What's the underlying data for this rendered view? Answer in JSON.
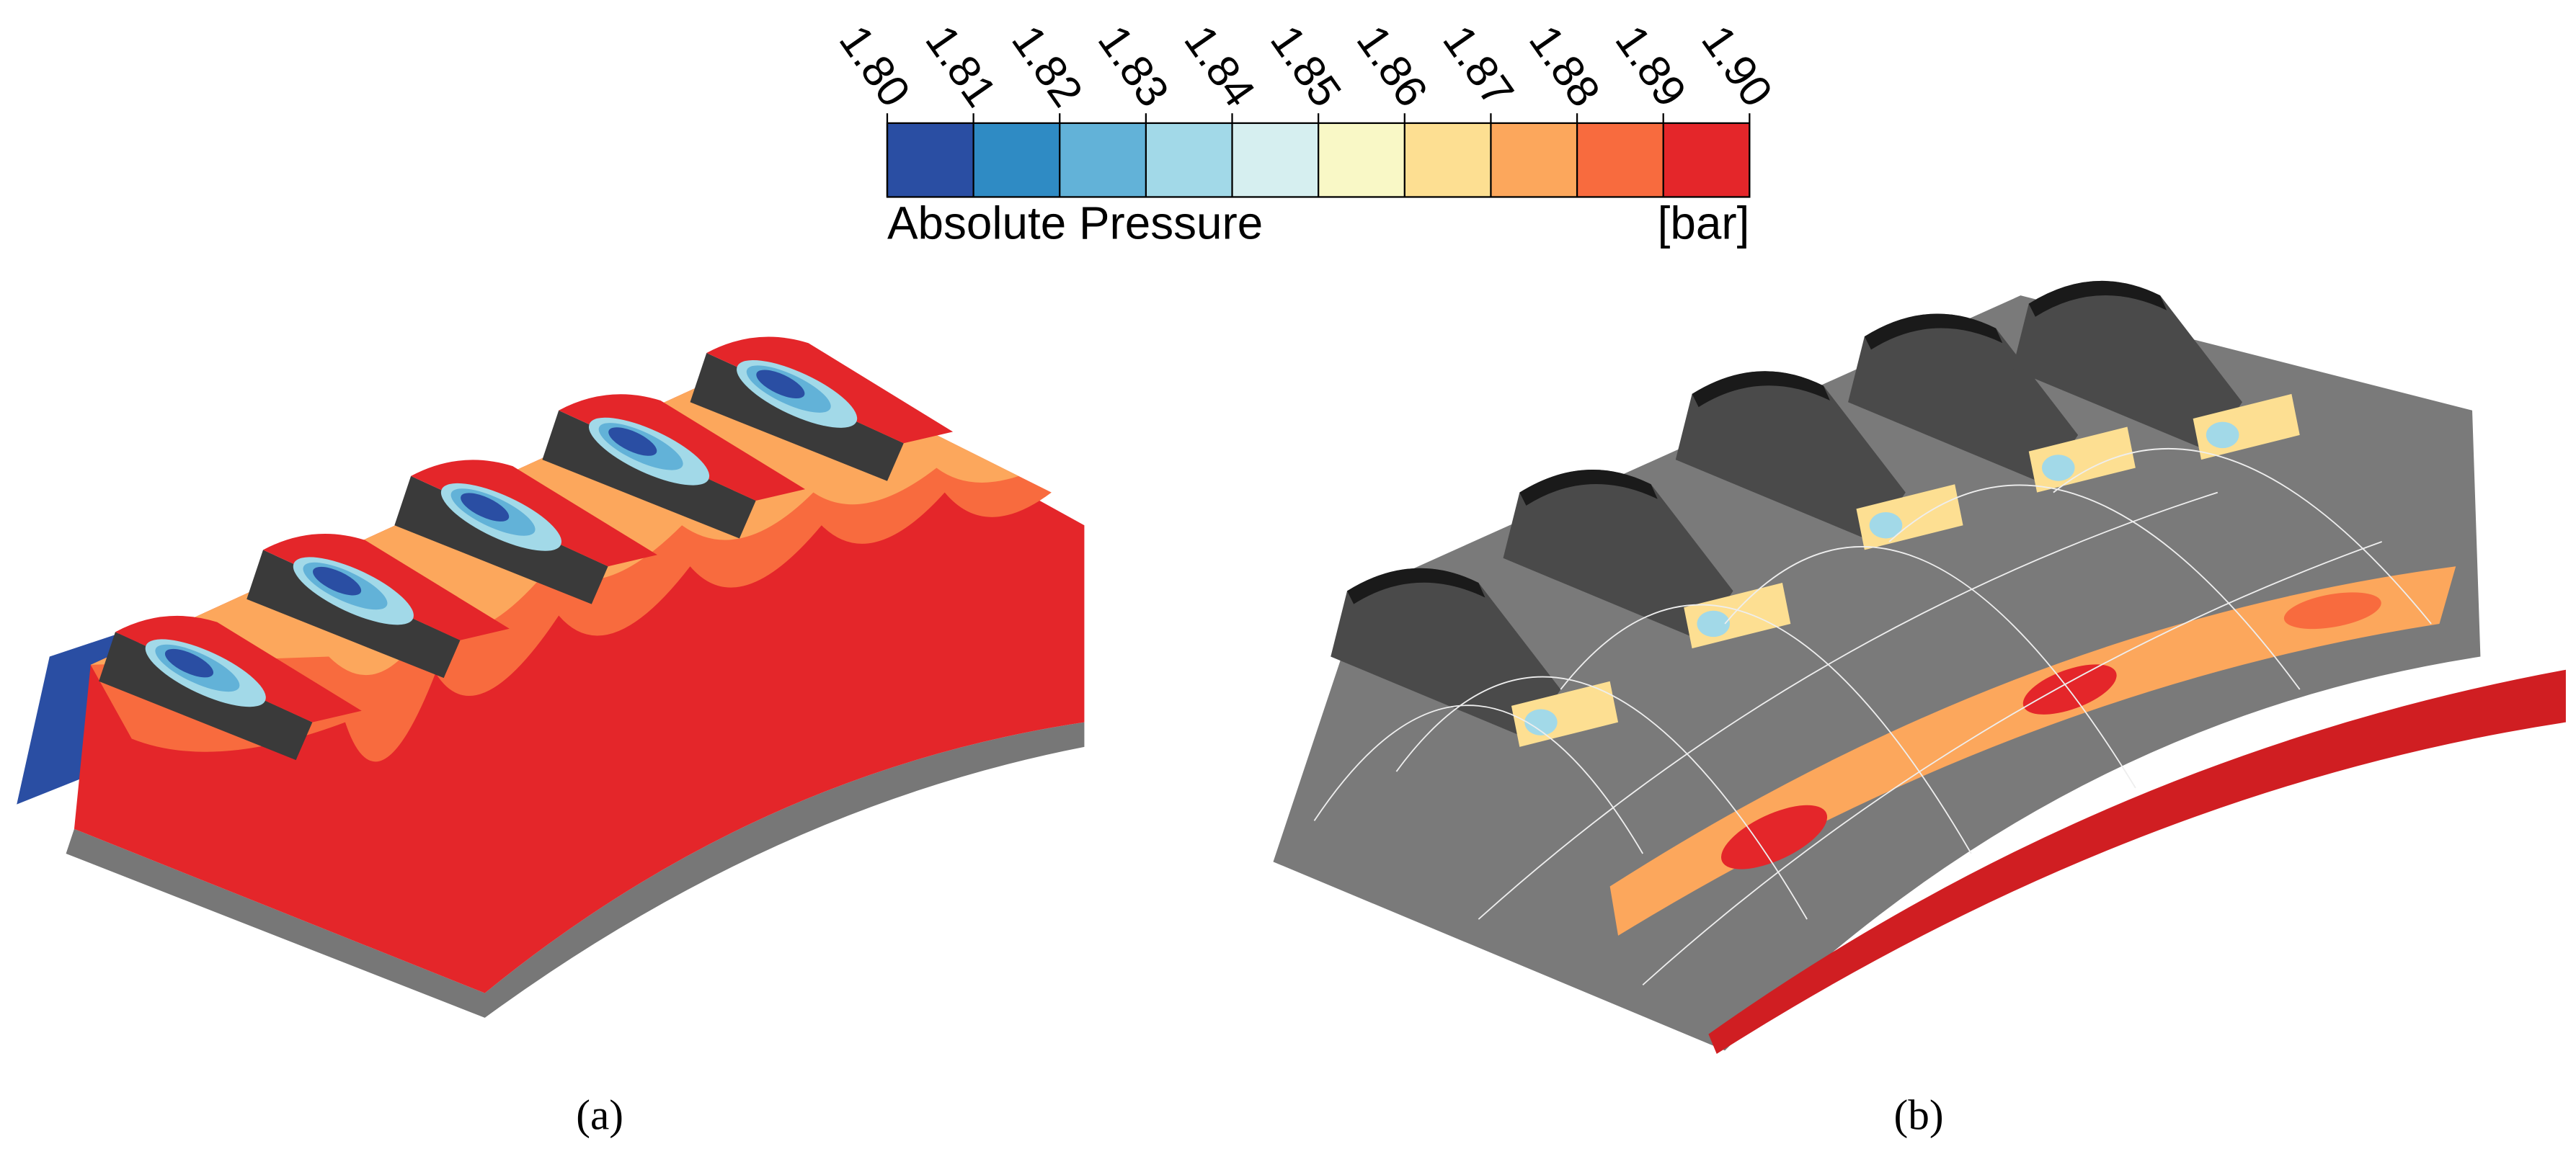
{
  "colorbar": {
    "title": "Absolute Pressure",
    "unit": "[bar]",
    "ticks": [
      {
        "value": 1.8,
        "label": "1.80"
      },
      {
        "value": 1.81,
        "label": "1.81"
      },
      {
        "value": 1.82,
        "label": "1.82"
      },
      {
        "value": 1.83,
        "label": "1.83"
      },
      {
        "value": 1.84,
        "label": "1.84"
      },
      {
        "value": 1.85,
        "label": "1.85"
      },
      {
        "value": 1.86,
        "label": "1.86"
      },
      {
        "value": 1.87,
        "label": "1.87"
      },
      {
        "value": 1.88,
        "label": "1.88"
      },
      {
        "value": 1.89,
        "label": "1.89"
      },
      {
        "value": 1.9,
        "label": "1.90"
      }
    ],
    "colors": [
      "#2a4ea3",
      "#2f8bc4",
      "#62b2d8",
      "#a2d9e8",
      "#d6eff0",
      "#f9f8c6",
      "#fddf92",
      "#fca75c",
      "#f86b3e",
      "#e4262a"
    ]
  },
  "panels": [
    {
      "label": "(a)"
    },
    {
      "label": "(b)"
    }
  ]
}
